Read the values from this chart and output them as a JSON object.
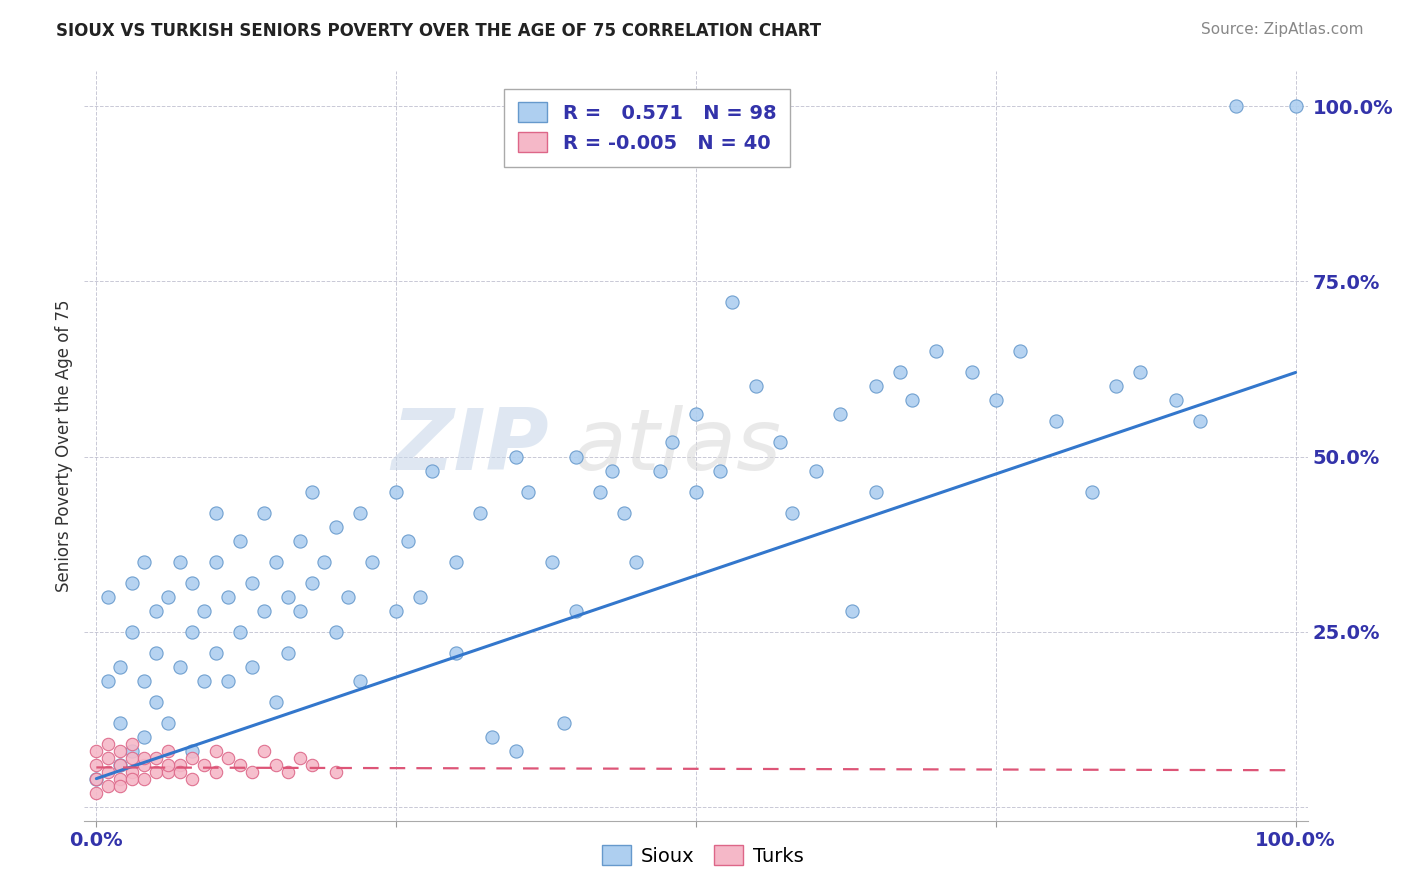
{
  "title": "SIOUX VS TURKISH SENIORS POVERTY OVER THE AGE OF 75 CORRELATION CHART",
  "source": "Source: ZipAtlas.com",
  "ylabel": "Seniors Poverty Over the Age of 75",
  "watermark_top": "ZIP",
  "watermark_bot": "atlas",
  "sioux_R": 0.571,
  "sioux_N": 98,
  "turks_R": -0.005,
  "turks_N": 40,
  "sioux_color": "#aecff0",
  "turks_color": "#f5b8c8",
  "sioux_edge_color": "#6699cc",
  "turks_edge_color": "#dd6688",
  "sioux_line_color": "#3377cc",
  "turks_line_color": "#dd5577",
  "title_color": "#222222",
  "tick_color": "#3333aa",
  "grid_color": "#bbbbcc",
  "background_color": "#ffffff",
  "sioux_points": [
    [
      0.0,
      0.04
    ],
    [
      0.01,
      0.18
    ],
    [
      0.01,
      0.3
    ],
    [
      0.02,
      0.06
    ],
    [
      0.02,
      0.12
    ],
    [
      0.02,
      0.2
    ],
    [
      0.03,
      0.08
    ],
    [
      0.03,
      0.25
    ],
    [
      0.03,
      0.32
    ],
    [
      0.04,
      0.1
    ],
    [
      0.04,
      0.18
    ],
    [
      0.04,
      0.35
    ],
    [
      0.05,
      0.15
    ],
    [
      0.05,
      0.28
    ],
    [
      0.05,
      0.22
    ],
    [
      0.06,
      0.12
    ],
    [
      0.06,
      0.3
    ],
    [
      0.07,
      0.2
    ],
    [
      0.07,
      0.35
    ],
    [
      0.08,
      0.08
    ],
    [
      0.08,
      0.25
    ],
    [
      0.08,
      0.32
    ],
    [
      0.09,
      0.18
    ],
    [
      0.09,
      0.28
    ],
    [
      0.1,
      0.35
    ],
    [
      0.1,
      0.22
    ],
    [
      0.1,
      0.42
    ],
    [
      0.11,
      0.3
    ],
    [
      0.11,
      0.18
    ],
    [
      0.12,
      0.25
    ],
    [
      0.12,
      0.38
    ],
    [
      0.13,
      0.2
    ],
    [
      0.13,
      0.32
    ],
    [
      0.14,
      0.28
    ],
    [
      0.14,
      0.42
    ],
    [
      0.15,
      0.15
    ],
    [
      0.15,
      0.35
    ],
    [
      0.16,
      0.3
    ],
    [
      0.16,
      0.22
    ],
    [
      0.17,
      0.38
    ],
    [
      0.17,
      0.28
    ],
    [
      0.18,
      0.32
    ],
    [
      0.18,
      0.45
    ],
    [
      0.19,
      0.35
    ],
    [
      0.2,
      0.25
    ],
    [
      0.2,
      0.4
    ],
    [
      0.21,
      0.3
    ],
    [
      0.22,
      0.18
    ],
    [
      0.22,
      0.42
    ],
    [
      0.23,
      0.35
    ],
    [
      0.25,
      0.28
    ],
    [
      0.25,
      0.45
    ],
    [
      0.26,
      0.38
    ],
    [
      0.27,
      0.3
    ],
    [
      0.28,
      0.48
    ],
    [
      0.3,
      0.35
    ],
    [
      0.3,
      0.22
    ],
    [
      0.32,
      0.42
    ],
    [
      0.33,
      0.1
    ],
    [
      0.35,
      0.5
    ],
    [
      0.35,
      0.08
    ],
    [
      0.36,
      0.45
    ],
    [
      0.38,
      0.35
    ],
    [
      0.39,
      0.12
    ],
    [
      0.4,
      0.5
    ],
    [
      0.4,
      0.28
    ],
    [
      0.42,
      0.45
    ],
    [
      0.43,
      0.48
    ],
    [
      0.44,
      0.42
    ],
    [
      0.45,
      0.35
    ],
    [
      0.47,
      0.48
    ],
    [
      0.48,
      0.52
    ],
    [
      0.5,
      0.45
    ],
    [
      0.5,
      0.56
    ],
    [
      0.52,
      0.48
    ],
    [
      0.53,
      0.72
    ],
    [
      0.55,
      0.6
    ],
    [
      0.57,
      0.52
    ],
    [
      0.58,
      0.42
    ],
    [
      0.6,
      0.48
    ],
    [
      0.62,
      0.56
    ],
    [
      0.63,
      0.28
    ],
    [
      0.65,
      0.6
    ],
    [
      0.65,
      0.45
    ],
    [
      0.67,
      0.62
    ],
    [
      0.68,
      0.58
    ],
    [
      0.7,
      0.65
    ],
    [
      0.73,
      0.62
    ],
    [
      0.75,
      0.58
    ],
    [
      0.77,
      0.65
    ],
    [
      0.8,
      0.55
    ],
    [
      0.83,
      0.45
    ],
    [
      0.85,
      0.6
    ],
    [
      0.87,
      0.62
    ],
    [
      0.9,
      0.58
    ],
    [
      0.92,
      0.55
    ],
    [
      0.95,
      1.0
    ],
    [
      1.0,
      1.0
    ]
  ],
  "turks_points": [
    [
      0.0,
      0.04
    ],
    [
      0.0,
      0.06
    ],
    [
      0.0,
      0.02
    ],
    [
      0.0,
      0.08
    ],
    [
      0.01,
      0.05
    ],
    [
      0.01,
      0.03
    ],
    [
      0.01,
      0.07
    ],
    [
      0.01,
      0.09
    ],
    [
      0.02,
      0.04
    ],
    [
      0.02,
      0.06
    ],
    [
      0.02,
      0.08
    ],
    [
      0.02,
      0.03
    ],
    [
      0.03,
      0.05
    ],
    [
      0.03,
      0.07
    ],
    [
      0.03,
      0.04
    ],
    [
      0.03,
      0.09
    ],
    [
      0.04,
      0.06
    ],
    [
      0.04,
      0.04
    ],
    [
      0.05,
      0.07
    ],
    [
      0.05,
      0.05
    ],
    [
      0.06,
      0.08
    ],
    [
      0.06,
      0.05
    ],
    [
      0.07,
      0.06
    ],
    [
      0.08,
      0.07
    ],
    [
      0.08,
      0.04
    ],
    [
      0.09,
      0.06
    ],
    [
      0.1,
      0.05
    ],
    [
      0.11,
      0.07
    ],
    [
      0.12,
      0.06
    ],
    [
      0.13,
      0.05
    ],
    [
      0.14,
      0.08
    ],
    [
      0.15,
      0.06
    ],
    [
      0.16,
      0.05
    ],
    [
      0.17,
      0.07
    ],
    [
      0.18,
      0.06
    ],
    [
      0.2,
      0.05
    ],
    [
      0.1,
      0.08
    ],
    [
      0.07,
      0.05
    ],
    [
      0.04,
      0.07
    ],
    [
      0.06,
      0.06
    ]
  ],
  "xlim": [
    -0.01,
    1.01
  ],
  "ylim": [
    -0.02,
    1.05
  ],
  "xtick_positions": [
    0.0,
    0.25,
    0.5,
    0.75,
    1.0
  ],
  "xticklabels": [
    "0.0%",
    "",
    "",
    "",
    "100.0%"
  ],
  "ytick_positions": [
    0.0,
    0.25,
    0.5,
    0.75,
    1.0
  ],
  "yticklabels": [
    "",
    "25.0%",
    "50.0%",
    "75.0%",
    "100.0%"
  ],
  "sioux_trend": [
    0.0,
    0.04,
    1.0,
    0.62
  ],
  "turks_trend": [
    0.0,
    0.056,
    1.0,
    0.052
  ]
}
